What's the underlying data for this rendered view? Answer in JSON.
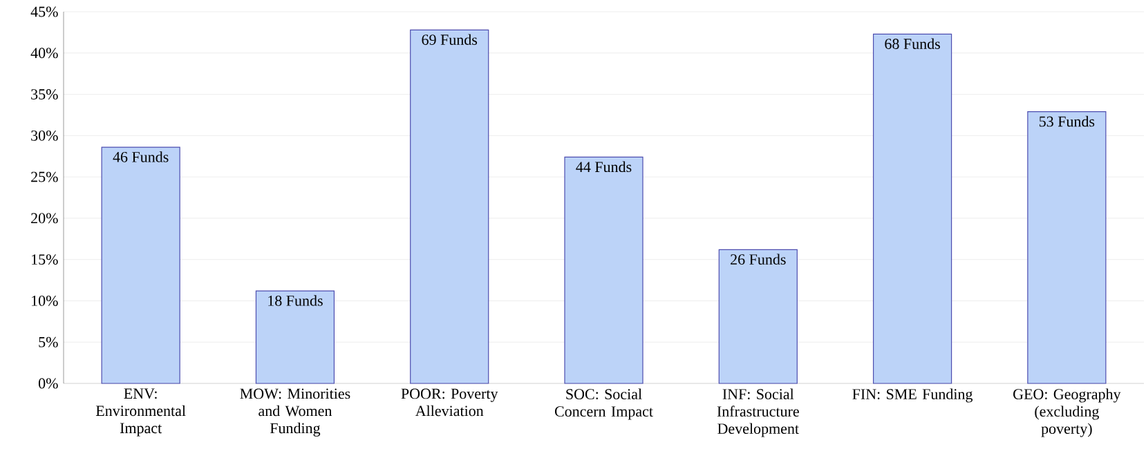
{
  "chart_data": {
    "type": "bar",
    "categories": [
      "ENV: Environmental Impact",
      "MOW: Minorities and Women Funding",
      "POOR: Poverty Alleviation",
      "SOC: Social Concern Impact",
      "INF: Social Infrastructure Development",
      "FIN: SME Funding",
      "GEO: Geography (excluding poverty)"
    ],
    "values": [
      28.6,
      11.2,
      42.8,
      27.4,
      16.2,
      42.3,
      32.9
    ],
    "annotations": [
      {
        "text": "46 Funds",
        "x": "ENV: Environmental Impact",
        "y": 28.6
      },
      {
        "text": "18 Funds",
        "x": "MOW: Minorities and Women Funding",
        "y": 11.2
      },
      {
        "text": "69 Funds",
        "x": "POOR: Poverty Alleviation",
        "y": 42.8
      },
      {
        "text": "44 Funds",
        "x": "SOC: Social Concern Impact",
        "y": 27.4
      },
      {
        "text": "26 Funds",
        "x": "INF: Social Infrastructure Development",
        "y": 16.2
      },
      {
        "text": "68 Funds",
        "x": "FIN: SME Funding",
        "y": 42.3
      },
      {
        "text": "53 Funds",
        "x": "GEO: Geography (excluding poverty)",
        "y": 32.9
      }
    ],
    "color": "#bcd3f8",
    "ylim": [
      0,
      45
    ],
    "yticks": [
      {
        "value": 0,
        "label": "0%"
      },
      {
        "value": 5,
        "label": "5%"
      },
      {
        "value": 10,
        "label": "10%"
      },
      {
        "value": 15,
        "label": "15%"
      },
      {
        "value": 20,
        "label": "20%"
      },
      {
        "value": 25,
        "label": "25%"
      },
      {
        "value": 30,
        "label": "30%"
      },
      {
        "value": 35,
        "label": "35%"
      },
      {
        "value": 40,
        "label": "40%"
      },
      {
        "value": 45,
        "label": "45%"
      }
    ],
    "grid": "y"
  }
}
